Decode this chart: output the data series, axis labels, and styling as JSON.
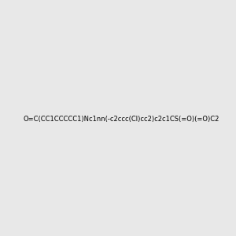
{
  "smiles": "O=C(CC1CCCCC1)Nc1nn(-c2ccc(Cl)cc2)c2c1CS(=O)(=O)C2",
  "image_size": 300,
  "background_color": "#e8e8e8",
  "title": "",
  "atom_colors": {
    "O": [
      1.0,
      0.0,
      0.0
    ],
    "N": [
      0.0,
      0.0,
      1.0
    ],
    "S": [
      1.0,
      1.0,
      0.0
    ],
    "Cl": [
      0.0,
      0.8,
      0.0
    ]
  }
}
